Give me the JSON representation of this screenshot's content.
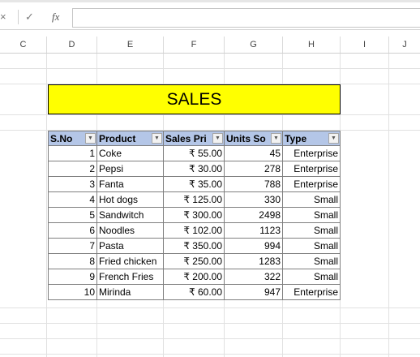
{
  "formula_bar": {
    "cancel_icon": "×",
    "enter_icon": "✓",
    "fx_label": "fx",
    "value": ""
  },
  "columns": [
    "C",
    "D",
    "E",
    "F",
    "G",
    "H",
    "I",
    "J"
  ],
  "sheet": {
    "title": "SALES",
    "headers": [
      "S.No",
      "Product",
      "Sales Pri",
      "Units So",
      "Type"
    ],
    "rows": [
      [
        "1",
        "Coke",
        "₹ 55.00",
        "45",
        "Enterprise"
      ],
      [
        "2",
        "Pepsi",
        "₹ 30.00",
        "278",
        "Enterprise"
      ],
      [
        "3",
        "Fanta",
        "₹ 35.00",
        "788",
        "Enterprise"
      ],
      [
        "4",
        "Hot dogs",
        "₹ 125.00",
        "330",
        "Small"
      ],
      [
        "5",
        "Sandwitch",
        "₹ 300.00",
        "2498",
        "Small"
      ],
      [
        "6",
        "Noodles",
        "₹ 102.00",
        "1123",
        "Small"
      ],
      [
        "7",
        "Pasta",
        "₹ 350.00",
        "994",
        "Small"
      ],
      [
        "8",
        "Fried chicken",
        "₹ 250.00",
        "1283",
        "Small"
      ],
      [
        "9",
        "French Fries",
        "₹ 200.00",
        "322",
        "Small"
      ],
      [
        "10",
        "Mirinda",
        "₹ 60.00",
        "947",
        "Enterprise"
      ]
    ]
  },
  "colors": {
    "title_fill": "#ffff00",
    "header_fill": "#b4c6e7"
  }
}
